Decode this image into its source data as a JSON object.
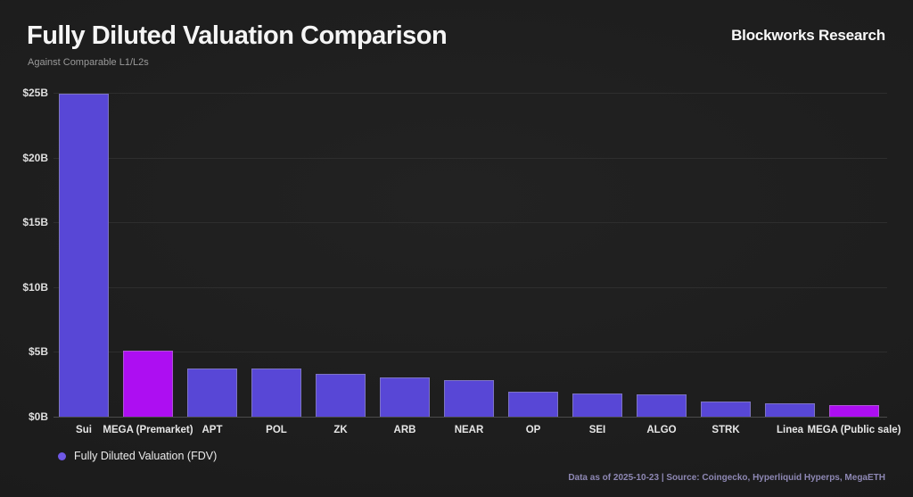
{
  "header": {
    "title": "Fully Diluted Valuation Comparison",
    "subtitle": "Against Comparable L1/L2s",
    "brand": "Blockworks Research"
  },
  "legend": {
    "label": "Fully Diluted Valuation (FDV)",
    "dot_color": "#6f58e6"
  },
  "footer": {
    "note": "Data as of 2025-10-23 | Source: Coingecko, Hyperliquid Hyperps, MegaETH"
  },
  "colors": {
    "bar_default": "#5847d6",
    "bar_highlight": "#ad0ef2",
    "gridline": "#2e2e2e",
    "axis_line": "#4b4b4b",
    "background": "#1d1d1d"
  },
  "chart_data": {
    "type": "bar",
    "title": "Fully Diluted Valuation Comparison",
    "subtitle": "Against Comparable L1/L2s",
    "series_name": "Fully Diluted Valuation (FDV)",
    "categories": [
      "Sui",
      "MEGA (Premarket)",
      "APT",
      "POL",
      "ZK",
      "ARB",
      "NEAR",
      "OP",
      "SEI",
      "ALGO",
      "STRK",
      "Linea",
      "MEGA (Public sale)"
    ],
    "values": [
      24.9,
      5.1,
      3.75,
      3.7,
      3.3,
      3.05,
      2.85,
      1.9,
      1.8,
      1.7,
      1.2,
      1.0,
      0.9
    ],
    "unit": "$B",
    "bar_colors": [
      "#5847d6",
      "#ad0ef2",
      "#5847d6",
      "#5847d6",
      "#5847d6",
      "#5847d6",
      "#5847d6",
      "#5847d6",
      "#5847d6",
      "#5847d6",
      "#5847d6",
      "#5847d6",
      "#ad0ef2"
    ],
    "xlabel": "",
    "ylabel": "",
    "ylim": [
      0,
      25
    ],
    "ytick_step": 5,
    "yticks": [
      "$0B",
      "$5B",
      "$10B",
      "$15B",
      "$20B",
      "$25B"
    ],
    "grid": "horizontal",
    "legend_position": "bottom-left"
  }
}
